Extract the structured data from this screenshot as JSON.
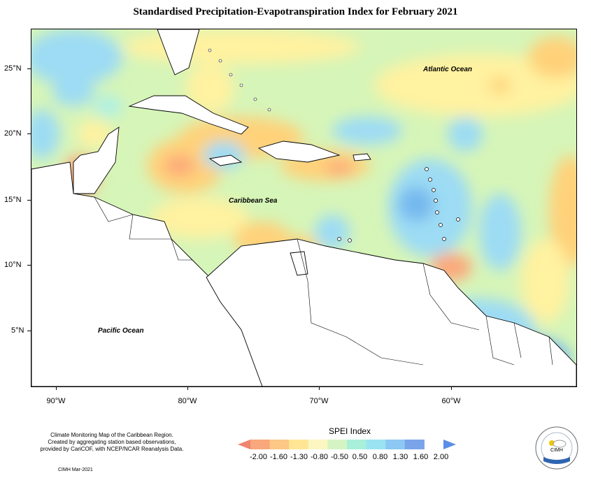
{
  "title": "Standardised Precipitation-Evapotranspiration Index for February 2021",
  "map": {
    "lat_labels": [
      "25°N",
      "20°N",
      "15°N",
      "10°N",
      "5°N"
    ],
    "lon_labels": [
      "90°W",
      "80°W",
      "70°W",
      "60°W"
    ],
    "ocean_labels": {
      "atlantic": "Atlantic Ocean",
      "caribbean": "Caribbean Sea",
      "pacific": "Pacific Ocean"
    },
    "colors": {
      "near_normal": "#d6f5b8",
      "dry_mild": "#fff2a0",
      "dry_moderate": "#ffd27a",
      "dry_severe": "#fca87a",
      "wet_mild": "#aef0e6",
      "wet_moderate": "#9ddcf4",
      "wet_strong": "#74b8ee",
      "wet_extreme": "#6d6de0",
      "land": "#ffffff"
    }
  },
  "legend": {
    "title": "SPEI Index",
    "ticks": [
      "-2.00",
      "-1.60",
      "-1.30",
      "-0.80",
      "-0.50",
      "0.50",
      "0.80",
      "1.30",
      "1.60",
      "2.00"
    ],
    "colors": [
      "#f0846e",
      "#f9a77c",
      "#fdc785",
      "#ffe695",
      "#fbf6c2",
      "#d5f4c3",
      "#a8f0da",
      "#9ae4f2",
      "#8cc8f3",
      "#7aa3ea",
      "#5b8ee6"
    ]
  },
  "notes": {
    "lines": [
      "Climate Monitoring Map of the Caribbean Region.",
      "Created by aggregating station based observations,",
      "provided by CariCOF, with NCEP/NCAR Reanalysis Data."
    ],
    "date": "CIMH Mar-2021"
  },
  "logo": {
    "text": "CIMH",
    "ring_text": "Caribbean Institute for Meteorology and Hydrology"
  }
}
